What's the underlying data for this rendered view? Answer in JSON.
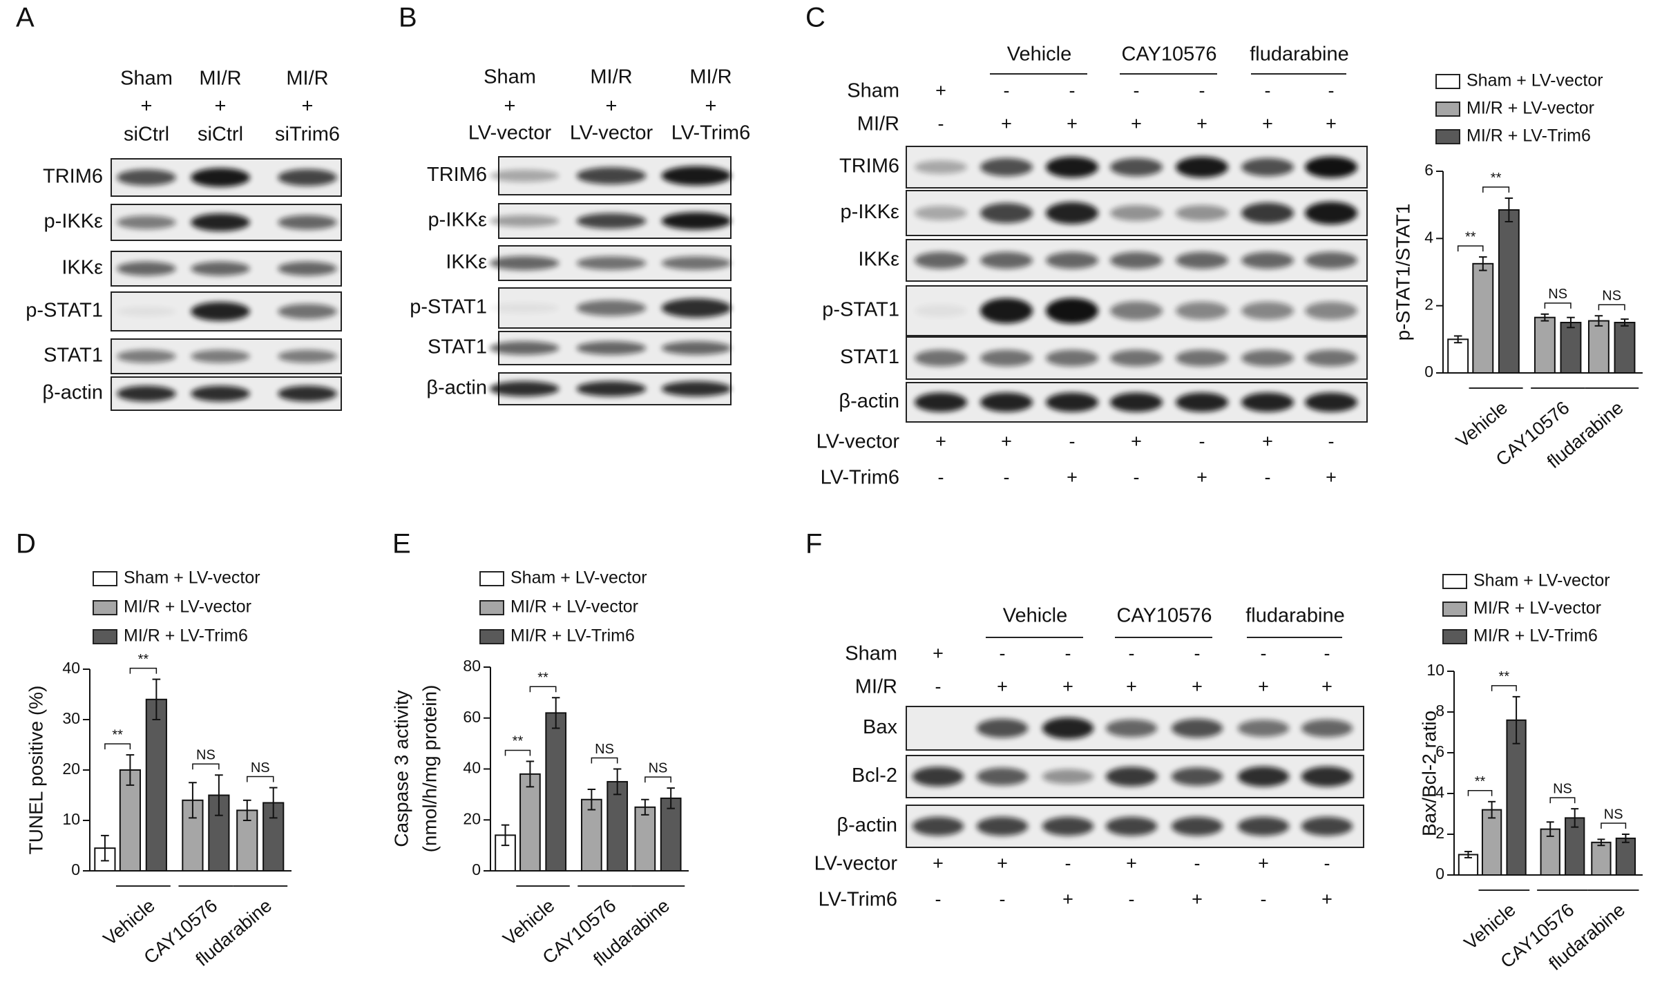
{
  "panel_a": {
    "letter": "A",
    "columns": [
      [
        "Sham",
        "+",
        "siCtrl"
      ],
      [
        "MI/R",
        "+",
        "siCtrl"
      ],
      [
        "MI/R",
        "+",
        "siTrim6"
      ]
    ],
    "rows": [
      "TRIM6",
      "p-IKKε",
      "IKKε",
      "p-STAT1",
      "STAT1",
      "β-actin"
    ]
  },
  "panel_b": {
    "letter": "B",
    "columns": [
      [
        "Sham",
        "+",
        "LV-vector"
      ],
      [
        "MI/R",
        "+",
        "LV-vector"
      ],
      [
        "MI/R",
        "+",
        "LV-Trim6"
      ]
    ],
    "rows": [
      "TRIM6",
      "p-IKKε",
      "IKKε",
      "p-STAT1",
      "STAT1",
      "β-actin"
    ]
  },
  "panel_c": {
    "letter": "C",
    "groups": [
      "Vehicle",
      "CAY10576",
      "fludarabine"
    ],
    "top_conditions": [
      {
        "label": "Sham",
        "signs": [
          "+",
          "-",
          "-",
          "-",
          "-",
          "-",
          "-"
        ]
      },
      {
        "label": "MI/R",
        "signs": [
          "-",
          "+",
          "+",
          "+",
          "+",
          "+",
          "+"
        ]
      }
    ],
    "rows": [
      "TRIM6",
      "p-IKKε",
      "IKKε",
      "p-STAT1",
      "STAT1",
      "β-actin"
    ],
    "bottom_conditions": [
      {
        "label": "LV-vector",
        "signs": [
          "+",
          "+",
          "-",
          "+",
          "-",
          "+",
          "-"
        ]
      },
      {
        "label": "LV-Trim6",
        "signs": [
          "-",
          "-",
          "+",
          "-",
          "+",
          "-",
          "+"
        ]
      }
    ]
  },
  "panel_d": {
    "letter": "D"
  },
  "panel_e": {
    "letter": "E"
  },
  "panel_f": {
    "letter": "F",
    "groups": [
      "Vehicle",
      "CAY10576",
      "fludarabine"
    ],
    "top_conditions": [
      {
        "label": "Sham",
        "signs": [
          "+",
          "-",
          "-",
          "-",
          "-",
          "-",
          "-"
        ]
      },
      {
        "label": "MI/R",
        "signs": [
          "-",
          "+",
          "+",
          "+",
          "+",
          "+",
          "+"
        ]
      }
    ],
    "rows": [
      "Bax",
      "Bcl-2",
      "β-actin"
    ],
    "bottom_conditions": [
      {
        "label": "LV-vector",
        "signs": [
          "+",
          "+",
          "-",
          "+",
          "-",
          "+",
          "-"
        ]
      },
      {
        "label": "LV-Trim6",
        "signs": [
          "-",
          "-",
          "+",
          "-",
          "+",
          "-",
          "+"
        ]
      }
    ]
  },
  "chart_data": [
    {
      "type": "bar",
      "ylabel": "p-STAT1/STAT1",
      "categories": [
        "Vehicle",
        "CAY10576",
        "fludarabine"
      ],
      "ylim": [
        0,
        6
      ],
      "yticks": [
        0,
        2,
        4,
        6
      ],
      "series": [
        {
          "name": "Sham + LV-vector",
          "color": "#ffffff",
          "values": [
            1.0,
            null,
            null
          ],
          "errors": [
            0.1,
            null,
            null
          ]
        },
        {
          "name": "MI/R + LV-vector",
          "color": "#a6a6a6",
          "values": [
            3.25,
            1.65,
            1.55
          ],
          "errors": [
            0.2,
            0.1,
            0.15
          ]
        },
        {
          "name": "MI/R + LV-Trim6",
          "color": "#595959",
          "values": [
            4.85,
            1.5,
            1.5
          ],
          "errors": [
            0.35,
            0.15,
            0.1
          ]
        }
      ],
      "annotations": [
        "**",
        "**",
        "NS",
        "NS"
      ]
    },
    {
      "type": "bar",
      "ylabel": "TUNEL positive (%)",
      "categories": [
        "Vehicle",
        "CAY10576",
        "fludarabine"
      ],
      "ylim": [
        0,
        40
      ],
      "yticks": [
        0,
        10,
        20,
        30,
        40
      ],
      "series": [
        {
          "name": "Sham + LV-vector",
          "color": "#ffffff",
          "values": [
            4.5,
            null,
            null
          ],
          "errors": [
            2.5,
            null,
            null
          ]
        },
        {
          "name": "MI/R + LV-vector",
          "color": "#a6a6a6",
          "values": [
            20,
            14,
            12
          ],
          "errors": [
            3,
            3.5,
            2
          ]
        },
        {
          "name": "MI/R + LV-Trim6",
          "color": "#595959",
          "values": [
            34,
            15,
            13.5
          ],
          "errors": [
            4,
            4,
            3
          ]
        }
      ],
      "annotations": [
        "**",
        "**",
        "NS",
        "NS"
      ]
    },
    {
      "type": "bar",
      "ylabel": [
        "Caspase 3 activity",
        "(nmol/h/mg protein)"
      ],
      "categories": [
        "Vehicle",
        "CAY10576",
        "fludarabine"
      ],
      "ylim": [
        0,
        80
      ],
      "yticks": [
        0,
        20,
        40,
        60,
        80
      ],
      "series": [
        {
          "name": "Sham + LV-vector",
          "color": "#ffffff",
          "values": [
            14,
            null,
            null
          ],
          "errors": [
            4,
            null,
            null
          ]
        },
        {
          "name": "MI/R + LV-vector",
          "color": "#a6a6a6",
          "values": [
            38,
            28,
            25
          ],
          "errors": [
            5,
            4,
            3
          ]
        },
        {
          "name": "MI/R + LV-Trim6",
          "color": "#595959",
          "values": [
            62,
            35,
            28.5
          ],
          "errors": [
            6,
            5,
            4
          ]
        }
      ],
      "annotations": [
        "**",
        "**",
        "NS",
        "NS"
      ]
    },
    {
      "type": "bar",
      "ylabel": "Bax/Bcl-2 ratio",
      "categories": [
        "Vehicle",
        "CAY10576",
        "fludarabine"
      ],
      "ylim": [
        0,
        10
      ],
      "yticks": [
        0,
        2,
        4,
        6,
        8,
        10
      ],
      "series": [
        {
          "name": "Sham + LV-vector",
          "color": "#ffffff",
          "values": [
            1.0,
            null,
            null
          ],
          "errors": [
            0.15,
            null,
            null
          ]
        },
        {
          "name": "MI/R + LV-vector",
          "color": "#a6a6a6",
          "values": [
            3.2,
            2.25,
            1.6
          ],
          "errors": [
            0.4,
            0.35,
            0.15
          ]
        },
        {
          "name": "MI/R + LV-Trim6",
          "color": "#595959",
          "values": [
            7.6,
            2.8,
            1.8
          ],
          "errors": [
            1.15,
            0.45,
            0.2
          ]
        }
      ],
      "annotations": [
        "**",
        "**",
        "NS",
        "NS"
      ]
    }
  ]
}
